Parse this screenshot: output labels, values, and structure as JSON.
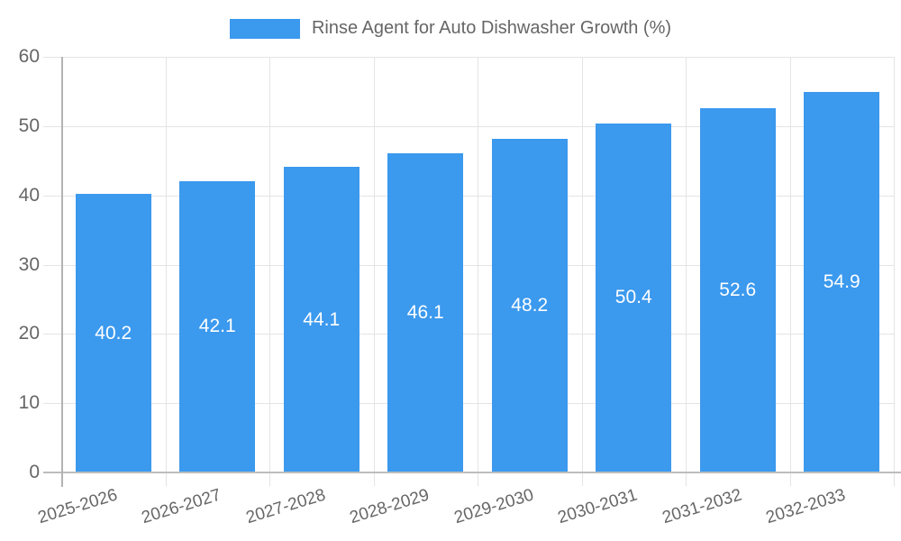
{
  "chart_data": {
    "type": "bar",
    "title": "",
    "legend": "Rinse Agent for Auto Dishwasher Growth (%)",
    "legend_position": "top-center",
    "categories": [
      "2025-2026",
      "2026-2027",
      "2027-2028",
      "2028-2029",
      "2029-2030",
      "2030-2031",
      "2031-2032",
      "2032-2033"
    ],
    "values": [
      40.2,
      42.1,
      44.1,
      46.1,
      48.2,
      50.4,
      52.6,
      54.9
    ],
    "value_labels": [
      "40.2",
      "42.1",
      "44.1",
      "46.1",
      "48.2",
      "50.4",
      "52.6",
      "54.9"
    ],
    "xlabel": "",
    "ylabel": "",
    "ylim": [
      0,
      60
    ],
    "yticks": [
      0,
      10,
      20,
      30,
      40,
      50,
      60
    ],
    "grid": true,
    "x_tick_rotation_deg": -17,
    "colors": {
      "bar": "#3b99ee",
      "bar_value_text": "#ffffff",
      "tick_label": "#666666",
      "legend_text": "#666666",
      "gridline": "#e4e4e4",
      "axis_line": "#b3b3b3",
      "background": "#ffffff"
    }
  }
}
